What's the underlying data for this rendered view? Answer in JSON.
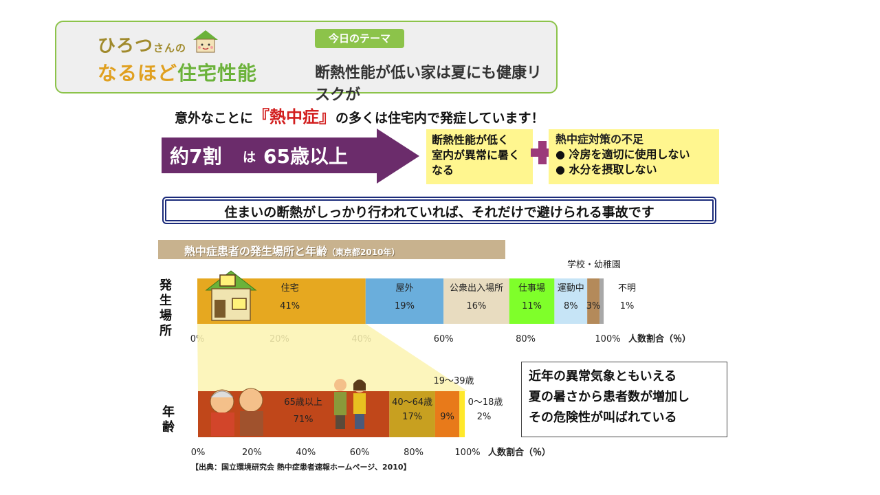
{
  "header": {
    "brand_part1": "ひろつ",
    "brand_part2": "さんの",
    "brand_line2_a": "なるほど",
    "brand_line2_b": "住宅性能",
    "theme_badge": "今日のテーマ",
    "theme_title": "断熱性能が低い家は夏にも健康リスクが"
  },
  "headline": {
    "pre": "意外なことに",
    "highlight": "『熱中症』",
    "post": "の多くは住宅内で発症しています！"
  },
  "stat": {
    "main": "約7割",
    "particle": "は",
    "age": "65歳以上"
  },
  "cause1": {
    "lines": [
      "断熱性能が低く",
      "室内が異常に暑く",
      "なる"
    ]
  },
  "cause2": {
    "title": "熱中症対策の不足",
    "bullets": [
      "冷房を適切に使用しない",
      "水分を摂取しない"
    ]
  },
  "banner": "住まいの断熱がしっかり行われていれば、それだけで避けられる事故です",
  "chart_section_title": "熱中症患者の発生場所と年齢",
  "chart_section_sub": "（東京都2010年）",
  "note": [
    "近年の異常気象ともいえる",
    "夏の暑さから患者数が増加し",
    "その危険性が叫ばれている"
  ],
  "source": "【出典：国立環境研究会 熱中症患者速報ホームページ、2010】",
  "colors": {
    "accent_green": "#8cc34a",
    "stat_purple": "#6b2c6b",
    "highlight_red": "#d21e1e",
    "cause_yellow": "#fff68f"
  },
  "chart_data": [
    {
      "type": "bar",
      "orientation": "horizontal-stacked",
      "ylabel": "発生場所",
      "xlabel": "人数割合（％）",
      "xlim": [
        0,
        100
      ],
      "ticks": [
        "0%",
        "20%",
        "40%",
        "60%",
        "80%",
        "100%"
      ],
      "series": [
        {
          "name": "住宅",
          "value": 41,
          "label": "41%",
          "color": "#e6a820"
        },
        {
          "name": "屋外",
          "value": 19,
          "label": "19%",
          "color": "#6aaedc"
        },
        {
          "name": "公衆出入場所",
          "value": 16,
          "label": "16%",
          "color": "#e8dcc0"
        },
        {
          "name": "仕事場",
          "value": 11,
          "label": "11%",
          "color": "#7fff2a"
        },
        {
          "name": "運動中",
          "value": 8,
          "label": "8%",
          "color": "#c6e4f6"
        },
        {
          "name": "学校・幼稚園",
          "value": 3,
          "label": "3%",
          "color": "#b48a5a"
        },
        {
          "name": "不明",
          "value": 1,
          "label": "1%",
          "color": "#a8a8a8"
        }
      ],
      "annotation_above": "学校・幼稚園"
    },
    {
      "type": "bar",
      "orientation": "horizontal-stacked",
      "ylabel": "年齢",
      "xlabel": "人数割合（％）",
      "xlim": [
        0,
        100
      ],
      "ticks": [
        "0%",
        "20%",
        "40%",
        "60%",
        "80%",
        "100%"
      ],
      "series": [
        {
          "name": "65歳以上",
          "value": 71,
          "label": "71%",
          "color": "#c0471a"
        },
        {
          "name": "40～64歳",
          "value": 17,
          "label": "17%",
          "color": "#c8a020"
        },
        {
          "name": "19～39歳",
          "value": 9,
          "label": "9%",
          "color": "#e87a1a"
        },
        {
          "name": "0～18歳",
          "value": 2,
          "label": "2%",
          "color": "#ffe82a"
        }
      ]
    }
  ]
}
